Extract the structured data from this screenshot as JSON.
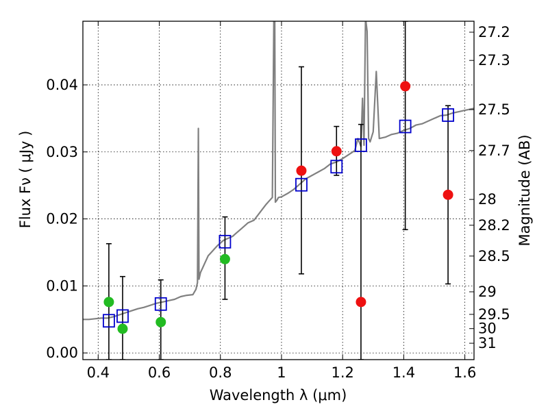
{
  "chart_data": {
    "type": "scatter",
    "xlabel": "Wavelength  λ (μm)",
    "ylabel": "Flux  Fν  ( μJy )",
    "ylabel_right": "Magnitude (AB)",
    "xlim": [
      0.35,
      1.63
    ],
    "ylim": [
      -0.001,
      0.0495
    ],
    "grid": true,
    "x_ticks": [
      0.4,
      0.6,
      0.8,
      1.0,
      1.2,
      1.4,
      1.6
    ],
    "x_tick_labels": [
      "0.4",
      "0.6",
      "0.8",
      "1",
      "1.2",
      "1.4",
      "1.6"
    ],
    "y_ticks": [
      0.0,
      0.01,
      0.02,
      0.03,
      0.04
    ],
    "y_tick_labels": [
      "0.00",
      "0.01",
      "0.02",
      "0.03",
      "0.04"
    ],
    "mag_ticks": [
      27.2,
      27.3,
      27.5,
      27.7,
      28,
      28.2,
      28.5,
      29,
      29.5,
      30,
      31
    ],
    "mag_tick_labels": [
      "27.2",
      "27.3",
      "27.5",
      "27.7",
      "28",
      "28.2",
      "28.5",
      "29",
      "29.5",
      "30",
      "31"
    ],
    "series": [
      {
        "name": "model-spectrum",
        "kind": "line",
        "color": "#808080",
        "x": [
          0.35,
          0.37,
          0.39,
          0.41,
          0.43,
          0.45,
          0.47,
          0.49,
          0.51,
          0.53,
          0.55,
          0.57,
          0.59,
          0.61,
          0.63,
          0.65,
          0.67,
          0.69,
          0.71,
          0.72,
          0.725,
          0.728,
          0.73,
          0.735,
          0.74,
          0.75,
          0.76,
          0.77,
          0.78,
          0.79,
          0.8,
          0.81,
          0.82,
          0.83,
          0.84,
          0.85,
          0.87,
          0.89,
          0.91,
          0.93,
          0.95,
          0.96,
          0.97,
          0.975,
          0.978,
          0.98,
          0.985,
          0.99,
          1.0,
          1.02,
          1.04,
          1.06,
          1.08,
          1.1,
          1.12,
          1.14,
          1.16,
          1.18,
          1.2,
          1.22,
          1.24,
          1.25,
          1.26,
          1.265,
          1.27,
          1.275,
          1.28,
          1.285,
          1.29,
          1.3,
          1.31,
          1.32,
          1.34,
          1.36,
          1.38,
          1.4,
          1.42,
          1.44,
          1.46,
          1.48,
          1.5,
          1.52,
          1.54,
          1.56,
          1.58,
          1.6,
          1.63
        ],
        "y": [
          0.005,
          0.005,
          0.0051,
          0.0052,
          0.0052,
          0.0054,
          0.0057,
          0.006,
          0.0063,
          0.0066,
          0.0068,
          0.0071,
          0.0074,
          0.0076,
          0.0078,
          0.008,
          0.0084,
          0.0086,
          0.0087,
          0.0095,
          0.0105,
          0.0335,
          0.011,
          0.012,
          0.0125,
          0.0135,
          0.0145,
          0.015,
          0.0155,
          0.016,
          0.0164,
          0.0168,
          0.017,
          0.0172,
          0.0174,
          0.0178,
          0.0186,
          0.0194,
          0.0198,
          0.021,
          0.0222,
          0.0227,
          0.0232,
          0.05,
          0.05,
          0.0225,
          0.0228,
          0.0232,
          0.0233,
          0.0238,
          0.0244,
          0.0252,
          0.026,
          0.0265,
          0.027,
          0.0275,
          0.0282,
          0.0285,
          0.029,
          0.0296,
          0.0302,
          0.032,
          0.0308,
          0.038,
          0.031,
          0.05,
          0.048,
          0.032,
          0.0315,
          0.033,
          0.042,
          0.032,
          0.0322,
          0.0326,
          0.0328,
          0.0332,
          0.0335,
          0.034,
          0.0342,
          0.0346,
          0.035,
          0.0354,
          0.0355,
          0.0358,
          0.036,
          0.0362,
          0.0365
        ]
      },
      {
        "name": "model-photometry",
        "kind": "open-square",
        "color": "#0000cc",
        "x": [
          0.435,
          0.48,
          0.605,
          0.815,
          1.065,
          1.18,
          1.26,
          1.405,
          1.545
        ],
        "y": [
          0.0048,
          0.0055,
          0.0073,
          0.0166,
          0.0251,
          0.0278,
          0.031,
          0.0338,
          0.0355
        ]
      },
      {
        "name": "optical-detections",
        "kind": "filled-circle",
        "color": "#22bb22",
        "x": [
          0.435,
          0.48,
          0.605,
          0.815
        ],
        "y": [
          0.0076,
          0.0036,
          0.0046,
          0.014
        ]
      },
      {
        "name": "near-ir-detections",
        "kind": "filled-circle",
        "color": "#ee1111",
        "x": [
          1.065,
          1.18,
          1.26,
          1.405,
          1.545
        ],
        "y": [
          0.0272,
          0.0301,
          0.0076,
          0.0398,
          0.0236
        ]
      },
      {
        "name": "error-bars",
        "kind": "errorbar",
        "color": "#000000",
        "x": [
          0.435,
          0.48,
          0.605,
          0.815,
          1.065,
          1.18,
          1.26,
          1.405,
          1.545
        ],
        "y_low": [
          -0.001,
          -0.001,
          -0.001,
          0.008,
          0.0118,
          0.0265,
          -0.001,
          0.0184,
          0.0103
        ],
        "y_high": [
          0.0163,
          0.0114,
          0.0109,
          0.0203,
          0.0427,
          0.0338,
          0.0341,
          0.0495,
          0.0369
        ]
      }
    ]
  }
}
